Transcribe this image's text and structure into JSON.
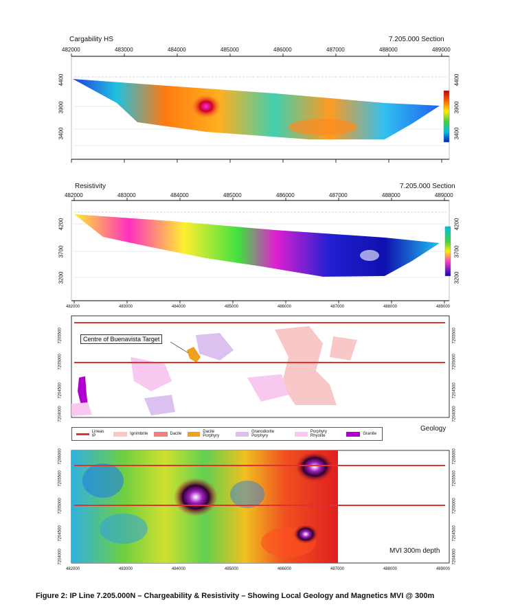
{
  "panels": {
    "chargeability": {
      "title": "Cargability HS",
      "section": "7.205.000 Section",
      "depth_ticks": [
        "4400",
        "3900",
        "3400"
      ]
    },
    "resistivity": {
      "title": "Resistivity",
      "section": "7.205.000 Section",
      "depth_ticks": [
        "4200",
        "3700",
        "3200"
      ]
    },
    "geology": {
      "title": "Geology",
      "annotation": "Centre of Buenavista Target",
      "y_ticks": [
        "7205500",
        "7205000",
        "7204500",
        "7204000"
      ]
    },
    "magnetics": {
      "annotation": "MVI 300m depth",
      "y_ticks": [
        "7206000",
        "7205500",
        "7205000",
        "7204500",
        "7204000"
      ]
    }
  },
  "x_ticks": [
    "482000",
    "483000",
    "484000",
    "485000",
    "486000",
    "487000",
    "488000",
    "489000"
  ],
  "legend": [
    {
      "label": "Lineas IP",
      "color": "#e03030",
      "kind": "line"
    },
    {
      "label": "Ignimbrite",
      "color": "#f8c8c8",
      "kind": "fill"
    },
    {
      "label": "Dacite",
      "color": "#f08080",
      "kind": "fill"
    },
    {
      "label": "Dacite Porphyry",
      "color": "#f0a020",
      "kind": "fill"
    },
    {
      "label": "Granodiorite Porphyry",
      "color": "#dcc0f0",
      "kind": "fill"
    },
    {
      "label": "Porphyry Rhyolite",
      "color": "#f8c8f0",
      "kind": "fill"
    },
    {
      "label": "Granite",
      "color": "#b000d0",
      "kind": "fill"
    }
  ],
  "caption": "Figure 2: IP Line 7.205.000N – Chargeability & Resistivity – Showing Local Geology and Magnetics MVI @ 300m"
}
